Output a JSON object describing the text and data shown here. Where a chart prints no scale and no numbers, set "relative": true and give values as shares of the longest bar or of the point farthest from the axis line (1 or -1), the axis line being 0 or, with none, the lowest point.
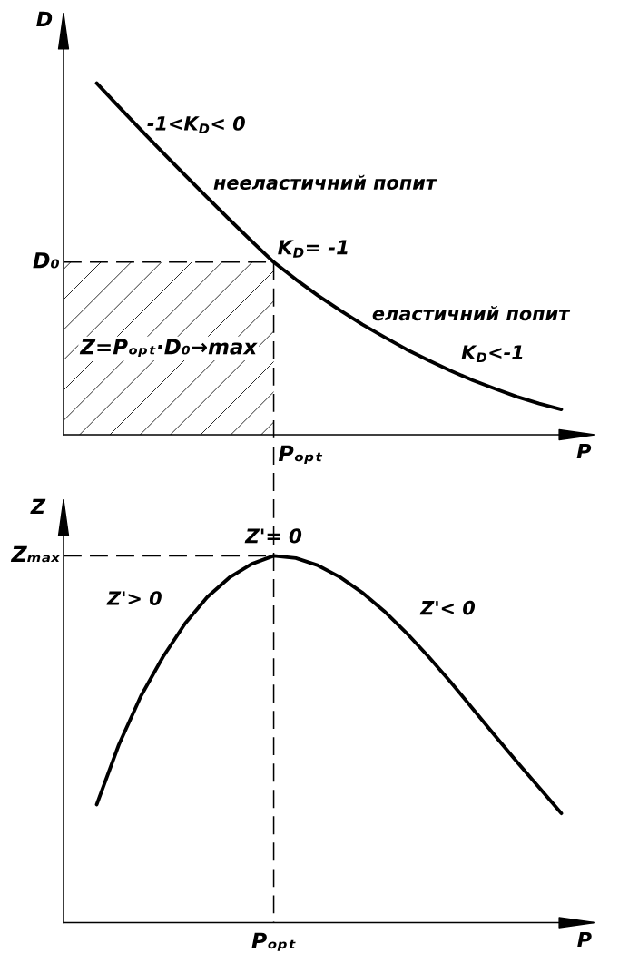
{
  "chart_data": [
    {
      "type": "line",
      "relative": true,
      "xlabel": "P",
      "ylabel": "D",
      "line_style": "solid",
      "categories": [
        null,
        null,
        null,
        null,
        null,
        null,
        null,
        null,
        null,
        null,
        null,
        null,
        null,
        null,
        null,
        null,
        null,
        null,
        null,
        null,
        null,
        null,
        null,
        null
      ],
      "series": [
        {
          "color": "#000000",
          "values": [
            null,
            1.0,
            0.933,
            0.867,
            0.802,
            0.738,
            0.675,
            0.612,
            0.551,
            0.491,
            0.442,
            0.396,
            0.354,
            0.314,
            0.278,
            0.243,
            0.212,
            0.182,
            0.155,
            0.131,
            0.108,
            0.089,
            0.072,
            null
          ]
        }
      ],
      "ref_lines": [
        {
          "axis": "y",
          "value": 0.491,
          "label": "D₀",
          "color": "#000000",
          "line_style": "dashed"
        }
      ],
      "bands": [
        {
          "axis": "y",
          "from": 0,
          "to": 0.491,
          "label": "Z=Pₒₚₜ·D₀→max",
          "color": "#000000"
        }
      ],
      "annotations": [
        "-1<K$_{D}$< 0",
        "нееластичний попит",
        "K$_{D}$= -1",
        "еластичний попит",
        "K$_{D}$<-1",
        "Pₒₚₜ"
      ]
    },
    {
      "type": "line",
      "relative": true,
      "xlabel": "P",
      "ylabel": "Z",
      "line_style": "solid",
      "categories": [
        null,
        null,
        null,
        null,
        null,
        null,
        null,
        null,
        null,
        null,
        null,
        null,
        null,
        null,
        null,
        null,
        null,
        null,
        null,
        null,
        null,
        null,
        null,
        null
      ],
      "series": [
        {
          "color": "#000000",
          "values": [
            null,
            0.322,
            0.485,
            0.618,
            0.725,
            0.816,
            0.888,
            0.941,
            0.978,
            1.0,
            0.994,
            0.974,
            0.942,
            0.9,
            0.849,
            0.79,
            0.725,
            0.656,
            0.583,
            0.51,
            0.438,
            0.368,
            0.298,
            null
          ]
        }
      ],
      "ref_lines": [
        {
          "axis": "y",
          "value": 1.0,
          "label": "Zₘₐₓ",
          "color": "#000000",
          "line_style": "dashed"
        }
      ],
      "annotations": [
        "Z'= 0",
        "Z'> 0",
        "Z'< 0",
        "Pₒₚₜ"
      ]
    }
  ]
}
